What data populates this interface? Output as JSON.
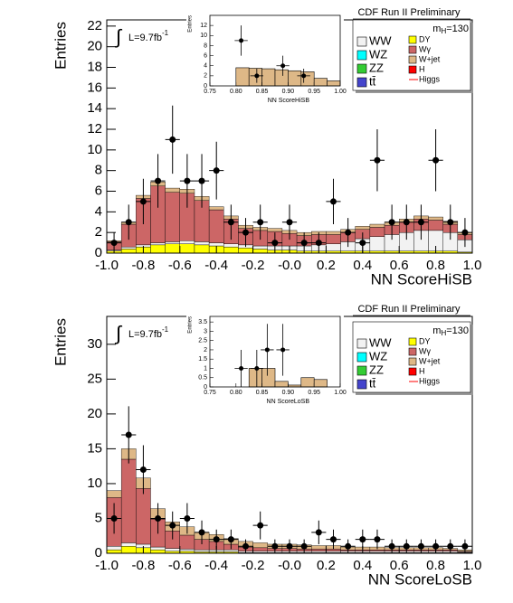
{
  "chart_data": [
    {
      "type": "histogram",
      "title": "CDF Run II Preliminary",
      "mass_label": {
        "text": "m",
        "sub": "H",
        "rest": "=130"
      },
      "lumi_label": {
        "integral": "∫",
        "text": "L=9.7fb",
        "sup": "-1"
      },
      "xlabel": "NN ScoreHiSB",
      "ylabel": "Entries",
      "xlim": [
        -1,
        1
      ],
      "ylim": [
        0,
        22.6
      ],
      "xticks": [
        {
          "value": -1,
          "label": "-1.0"
        },
        -0.8,
        -0.6,
        -0.4,
        -0.2,
        {
          "value": 0,
          "label": "-0.0"
        },
        0.2,
        0.4,
        0.6,
        0.8,
        {
          "value": 1,
          "label": "1.0"
        }
      ],
      "yticks": [
        0,
        2,
        4,
        6,
        8,
        10,
        12,
        14,
        16,
        18,
        20,
        22
      ],
      "bins": [
        -1,
        -0.92,
        -0.84,
        -0.76,
        -0.68,
        -0.6,
        -0.52,
        -0.44,
        -0.36,
        -0.28,
        -0.2,
        -0.12,
        -0.04,
        0.04,
        0.12,
        0.2,
        0.28,
        0.36,
        0.44,
        0.52,
        0.6,
        0.68,
        0.76,
        0.84,
        0.92,
        1
      ],
      "series": [
        {
          "name": "DY",
          "color": "#ffff00",
          "values": [
            0.2,
            0.4,
            0.6,
            0.8,
            0.9,
            0.9,
            0.8,
            0.7,
            0.6,
            0.5,
            0.4,
            0.3,
            0.3,
            0.2,
            0.2,
            0.2,
            0.2,
            0.2,
            0.2,
            0.2,
            0.2,
            0.2,
            0.2,
            0.2,
            0.1
          ]
        },
        {
          "name": "WW",
          "color": "#f2f2f2",
          "values": [
            0.1,
            0.2,
            0.2,
            0.2,
            0.2,
            0.3,
            0.3,
            0.3,
            0.3,
            0.3,
            0.3,
            0.4,
            0.4,
            0.5,
            0.6,
            0.7,
            0.9,
            1.2,
            1.4,
            1.6,
            1.8,
            2.0,
            2.0,
            1.8,
            1.2
          ]
        },
        {
          "name": "Wγ",
          "color": "#cc6666",
          "values": [
            0.8,
            2.2,
            4.5,
            5.5,
            4.8,
            4.6,
            4.0,
            3.2,
            2.4,
            1.6,
            1.5,
            1.4,
            1.2,
            1.0,
            1.0,
            0.9,
            0.9,
            0.9,
            0.9,
            0.9,
            1.0,
            1.1,
            1.0,
            0.8,
            0.5
          ]
        },
        {
          "name": "W+jet",
          "color": "#deb887",
          "values": [
            0.1,
            0.2,
            0.3,
            0.4,
            0.4,
            0.4,
            0.4,
            0.3,
            0.3,
            0.3,
            0.3,
            0.3,
            0.3,
            0.3,
            0.3,
            0.3,
            0.3,
            0.3,
            0.3,
            0.3,
            0.3,
            0.3,
            0.3,
            0.3,
            0.2
          ]
        }
      ],
      "legend_only": [
        {
          "name": "WZ",
          "color": "#00ffff"
        },
        {
          "name": "ZZ",
          "color": "#33cc33"
        },
        {
          "name": "tt̄",
          "color": "#4444cc"
        },
        {
          "name": "H",
          "color": "#ff0000"
        },
        {
          "name": "Higgs",
          "color": "#ff0000"
        }
      ],
      "data_points": {
        "values": [
          1,
          3,
          5,
          7,
          11,
          7,
          7,
          8,
          3,
          2,
          3,
          1,
          3,
          1,
          1,
          5,
          2,
          1,
          9,
          3,
          3,
          3,
          9,
          3,
          2
        ],
        "errors": [
          1,
          1.7,
          2.2,
          2.6,
          3.3,
          2.6,
          2.6,
          2.8,
          1.7,
          1.4,
          1.7,
          1,
          1.7,
          1,
          1,
          2.2,
          1.4,
          1,
          3,
          1.7,
          1.7,
          1.7,
          3,
          1.7,
          1.4
        ]
      },
      "inset": {
        "xlabel": "NN ScoreHiSB",
        "ylabel": "Entries",
        "xlim": [
          0.75,
          1
        ],
        "ylim": [
          0,
          14
        ],
        "xticks": [
          0.75,
          {
            "value": 0.8,
            "label": "0.80"
          },
          0.85,
          {
            "value": 0.9,
            "label": "0.90"
          },
          0.95,
          {
            "value": 1,
            "label": "1.00"
          }
        ],
        "yticks": [
          0,
          2,
          4,
          6,
          8,
          10,
          12
        ],
        "bins": [
          0.75,
          0.775,
          0.8,
          0.825,
          0.85,
          0.875,
          0.9,
          0.925,
          0.95,
          0.975,
          1
        ],
        "values": [
          0,
          0,
          3.6,
          3.5,
          3.4,
          3.2,
          3.0,
          2.8,
          1.5,
          1.0
        ],
        "color": "#deb887",
        "points": {
          "x": [
            0.81,
            0.84,
            0.89,
            0.93
          ],
          "values": [
            9,
            2,
            4,
            2
          ],
          "errors": [
            3,
            1.4,
            2,
            1.4
          ]
        }
      }
    },
    {
      "type": "histogram",
      "title": "CDF Run II Preliminary",
      "mass_label": {
        "text": "m",
        "sub": "H",
        "rest": "=130"
      },
      "lumi_label": {
        "integral": "∫",
        "text": "L=9.7fb",
        "sup": "-1"
      },
      "xlabel": "NN ScoreLoSB",
      "ylabel": "Entries",
      "xlim": [
        -1,
        1
      ],
      "ylim": [
        0,
        34
      ],
      "xticks": [
        {
          "value": -1,
          "label": "-1.0"
        },
        -0.8,
        -0.6,
        -0.4,
        -0.2,
        {
          "value": 0,
          "label": "-0.0"
        },
        0.2,
        0.4,
        0.6,
        0.8,
        {
          "value": 1,
          "label": "1.0"
        }
      ],
      "yticks": [
        0,
        5,
        10,
        15,
        20,
        25,
        30
      ],
      "bins": [
        -1,
        -0.92,
        -0.84,
        -0.76,
        -0.68,
        -0.6,
        -0.52,
        -0.44,
        -0.36,
        -0.28,
        -0.2,
        -0.12,
        -0.04,
        0.04,
        0.12,
        0.2,
        0.28,
        0.36,
        0.44,
        0.52,
        0.6,
        0.68,
        0.76,
        0.84,
        0.92,
        1
      ],
      "series": [
        {
          "name": "DY",
          "color": "#ffff00",
          "values": [
            0.5,
            1.0,
            0.8,
            0.5,
            0.3,
            0.3,
            0.2,
            0.2,
            0.2,
            0.1,
            0.1,
            0.1,
            0.1,
            0.1,
            0.1,
            0.1,
            0.1,
            0.1,
            0.1,
            0.1,
            0.1,
            0.1,
            0.1,
            0.1,
            0.1
          ]
        },
        {
          "name": "WW",
          "color": "#f2f2f2",
          "values": [
            0.5,
            0.5,
            0.5,
            0.4,
            0.4,
            0.3,
            0.3,
            0.3,
            0.3,
            0.2,
            0.2,
            0.2,
            0.2,
            0.2,
            0.2,
            0.2,
            0.2,
            0.2,
            0.2,
            0.2,
            0.2,
            0.2,
            0.2,
            0.2,
            0.1
          ]
        },
        {
          "name": "Wγ",
          "color": "#cc6666",
          "values": [
            7,
            12,
            8,
            4,
            2.5,
            2,
            1.5,
            1.2,
            0.8,
            0.6,
            0.5,
            0.4,
            0.4,
            0.3,
            0.3,
            0.3,
            0.2,
            0.2,
            0.2,
            0.2,
            0.2,
            0.2,
            0.2,
            0.2,
            0.1
          ]
        },
        {
          "name": "W+jet",
          "color": "#deb887",
          "values": [
            1,
            1.5,
            1.5,
            1.5,
            1.3,
            1.2,
            1,
            1,
            0.8,
            0.8,
            0.7,
            0.6,
            0.6,
            0.6,
            0.5,
            0.5,
            0.4,
            0.4,
            0.4,
            0.3,
            0.3,
            0.3,
            0.3,
            0.2,
            0.2
          ]
        }
      ],
      "legend_only": [
        {
          "name": "WZ",
          "color": "#00ffff"
        },
        {
          "name": "ZZ",
          "color": "#33cc33"
        },
        {
          "name": "tt̄",
          "color": "#4444cc"
        },
        {
          "name": "H",
          "color": "#ff0000"
        },
        {
          "name": "Higgs",
          "color": "#ff0000"
        }
      ],
      "data_points": {
        "values": [
          5,
          17,
          12,
          5,
          4,
          5,
          3,
          2,
          2,
          1,
          4,
          1,
          1,
          1,
          3,
          2,
          1,
          2,
          2,
          1,
          1,
          1,
          1,
          1,
          1
        ],
        "errors": [
          2.2,
          4.1,
          3.5,
          2.2,
          2,
          2.2,
          1.7,
          1.4,
          1.4,
          1,
          2,
          1,
          1,
          1,
          1.7,
          1.4,
          1,
          1.4,
          1.4,
          1,
          1,
          1,
          1,
          1,
          1
        ]
      },
      "inset": {
        "xlabel": "NN ScoreLoSB",
        "ylabel": "Entries",
        "xlim": [
          0.75,
          1
        ],
        "ylim": [
          0,
          3.8
        ],
        "xticks": [
          0.75,
          {
            "value": 0.8,
            "label": "0.80"
          },
          0.85,
          {
            "value": 0.9,
            "label": "0.90"
          },
          0.95,
          {
            "value": 1,
            "label": "1.00"
          }
        ],
        "yticks": [
          0,
          0.5,
          1,
          1.5,
          2,
          2.5,
          3,
          3.5
        ],
        "bins": [
          0.75,
          0.775,
          0.8,
          0.825,
          0.85,
          0.875,
          0.9,
          0.925,
          0.95,
          0.975,
          1
        ],
        "values": [
          0,
          0,
          0,
          1,
          1,
          0.3,
          0.1,
          0.5,
          0.4,
          0
        ],
        "color": "#deb887",
        "points": {
          "x": [
            0.81,
            0.84,
            0.86,
            0.89
          ],
          "values": [
            1,
            1,
            2,
            2
          ],
          "errors": [
            1,
            1,
            1.4,
            1.4
          ]
        }
      }
    }
  ]
}
